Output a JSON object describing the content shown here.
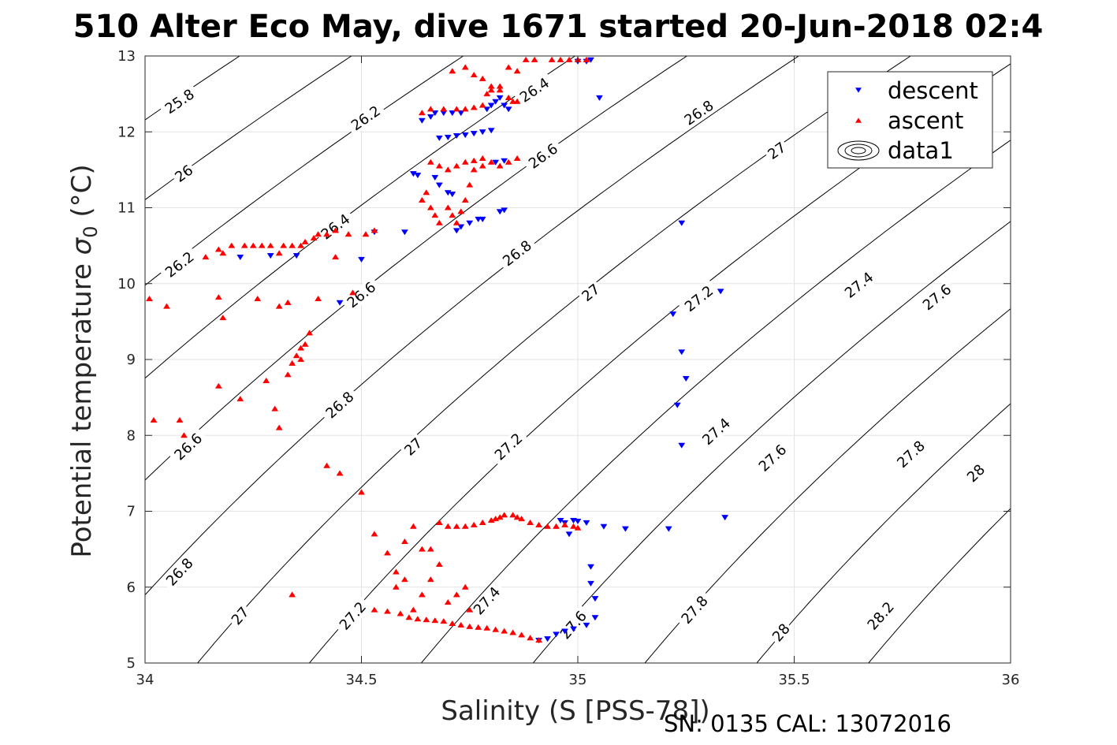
{
  "chart_data": {
    "type": "scatter",
    "title": "510 Alter Eco May, dive 1671 started 20-Jun-2018 02:4",
    "xlabel": "Salinity (S [PSS-78])",
    "ylabel_main": "Potential temperature ",
    "ylabel_symbol": "σ",
    "ylabel_sub": "0",
    "ylabel_unit": " (°C)",
    "footer": "SN: 0135  CAL: 13072016",
    "xlim": [
      34,
      36
    ],
    "ylim": [
      5,
      13
    ],
    "x_ticks": [
      "34",
      "34.5",
      "35",
      "35.5",
      "36"
    ],
    "y_ticks": [
      "5",
      "6",
      "7",
      "8",
      "9",
      "10",
      "11",
      "12",
      "13"
    ],
    "grid": true,
    "legend_position": "top-right",
    "legend": [
      {
        "label": "descent",
        "marker": "triangle-down",
        "color": "#0000ff"
      },
      {
        "label": "ascent",
        "marker": "triangle-up",
        "color": "#ff0000"
      },
      {
        "label": "data1",
        "marker": "contour",
        "color": "#000000"
      }
    ],
    "colors": {
      "descent": "#0000ff",
      "ascent": "#ff0000",
      "contour": "#000000",
      "grid": "#e3e3e3"
    },
    "contour_levels": [
      25.8,
      26.0,
      26.2,
      26.4,
      26.6,
      26.8,
      27.0,
      27.2,
      27.4,
      27.6,
      27.8,
      28.0,
      28.2
    ],
    "contour_labels": [
      {
        "text": "25.8",
        "s": 34.08,
        "t": 12.4
      },
      {
        "text": "26",
        "s": 34.09,
        "t": 11.45
      },
      {
        "text": "26.2",
        "s": 34.51,
        "t": 12.18
      },
      {
        "text": "26.2",
        "s": 34.08,
        "t": 10.25
      },
      {
        "text": "26.4",
        "s": 34.9,
        "t": 12.55
      },
      {
        "text": "26.4",
        "s": 34.44,
        "t": 10.75
      },
      {
        "text": "26.6",
        "s": 34.92,
        "t": 11.68
      },
      {
        "text": "26.6",
        "s": 34.5,
        "t": 9.85
      },
      {
        "text": "26.6",
        "s": 34.1,
        "t": 7.85
      },
      {
        "text": "26.8",
        "s": 35.28,
        "t": 12.25
      },
      {
        "text": "26.8",
        "s": 34.86,
        "t": 10.4
      },
      {
        "text": "26.8",
        "s": 34.45,
        "t": 8.4
      },
      {
        "text": "26.8",
        "s": 34.08,
        "t": 6.2
      },
      {
        "text": "27",
        "s": 35.46,
        "t": 11.75
      },
      {
        "text": "27",
        "s": 35.03,
        "t": 9.88
      },
      {
        "text": "27",
        "s": 34.62,
        "t": 7.85
      },
      {
        "text": "27",
        "s": 34.22,
        "t": 5.62
      },
      {
        "text": "27.2",
        "s": 35.28,
        "t": 9.8
      },
      {
        "text": "27.2",
        "s": 34.84,
        "t": 7.85
      },
      {
        "text": "27.2",
        "s": 34.48,
        "t": 5.62
      },
      {
        "text": "27.4",
        "s": 35.65,
        "t": 9.98
      },
      {
        "text": "27.4",
        "s": 35.32,
        "t": 8.05
      },
      {
        "text": "27.4",
        "s": 34.79,
        "t": 5.82
      },
      {
        "text": "27.6",
        "s": 35.83,
        "t": 9.82
      },
      {
        "text": "27.6",
        "s": 35.45,
        "t": 7.7
      },
      {
        "text": "27.6",
        "s": 34.99,
        "t": 5.5
      },
      {
        "text": "27.8",
        "s": 35.77,
        "t": 7.75
      },
      {
        "text": "27.8",
        "s": 35.27,
        "t": 5.7
      },
      {
        "text": "28",
        "s": 35.92,
        "t": 7.5
      },
      {
        "text": "28",
        "s": 35.47,
        "t": 5.4
      },
      {
        "text": "28.2",
        "s": 35.7,
        "t": 5.62
      }
    ],
    "series": [
      {
        "name": "descent",
        "points": [
          [
            34.22,
            10.35
          ],
          [
            34.29,
            10.37
          ],
          [
            34.35,
            10.37
          ],
          [
            34.45,
            9.75
          ],
          [
            34.5,
            10.32
          ],
          [
            34.53,
            10.68
          ],
          [
            34.6,
            10.68
          ],
          [
            34.62,
            11.45
          ],
          [
            34.63,
            11.43
          ],
          [
            34.67,
            11.4
          ],
          [
            34.68,
            11.3
          ],
          [
            34.7,
            11.2
          ],
          [
            34.71,
            11.18
          ],
          [
            34.72,
            10.7
          ],
          [
            34.73,
            10.75
          ],
          [
            34.75,
            10.8
          ],
          [
            34.77,
            10.85
          ],
          [
            34.78,
            10.85
          ],
          [
            34.82,
            10.95
          ],
          [
            34.83,
            10.97
          ],
          [
            34.64,
            12.15
          ],
          [
            34.66,
            12.2
          ],
          [
            34.67,
            12.25
          ],
          [
            34.69,
            12.25
          ],
          [
            34.71,
            12.25
          ],
          [
            34.73,
            12.25
          ],
          [
            34.68,
            11.92
          ],
          [
            34.7,
            11.93
          ],
          [
            34.72,
            11.95
          ],
          [
            34.74,
            11.96
          ],
          [
            34.76,
            11.98
          ],
          [
            34.78,
            12.0
          ],
          [
            34.8,
            12.02
          ],
          [
            34.81,
            11.6
          ],
          [
            34.83,
            11.62
          ],
          [
            34.79,
            12.3
          ],
          [
            34.8,
            12.35
          ],
          [
            34.81,
            12.4
          ],
          [
            34.82,
            12.45
          ],
          [
            34.83,
            12.35
          ],
          [
            34.84,
            12.3
          ],
          [
            35.0,
            12.93
          ],
          [
            35.02,
            12.93
          ],
          [
            35.03,
            12.95
          ],
          [
            35.05,
            12.45
          ],
          [
            35.24,
            10.8
          ],
          [
            35.22,
            9.6
          ],
          [
            35.24,
            9.1
          ],
          [
            35.25,
            8.75
          ],
          [
            35.23,
            8.4
          ],
          [
            35.24,
            7.87
          ],
          [
            35.33,
            9.9
          ],
          [
            35.34,
            6.92
          ],
          [
            35.21,
            6.77
          ],
          [
            35.11,
            6.77
          ],
          [
            35.06,
            6.8
          ],
          [
            34.96,
            6.88
          ],
          [
            34.97,
            6.85
          ],
          [
            34.98,
            6.7
          ],
          [
            34.99,
            6.88
          ],
          [
            35.0,
            6.87
          ],
          [
            35.02,
            6.85
          ],
          [
            35.03,
            6.27
          ],
          [
            35.03,
            6.05
          ],
          [
            35.04,
            5.85
          ],
          [
            35.04,
            5.6
          ],
          [
            35.02,
            5.5
          ],
          [
            34.99,
            5.45
          ],
          [
            34.97,
            5.42
          ],
          [
            34.95,
            5.38
          ],
          [
            34.93,
            5.32
          ],
          [
            34.91,
            5.3
          ]
        ]
      },
      {
        "name": "ascent",
        "points": [
          [
            34.01,
            9.8
          ],
          [
            34.05,
            9.7
          ],
          [
            34.14,
            10.35
          ],
          [
            34.17,
            10.45
          ],
          [
            34.18,
            10.4
          ],
          [
            34.2,
            10.5
          ],
          [
            34.23,
            10.5
          ],
          [
            34.25,
            10.5
          ],
          [
            34.27,
            10.5
          ],
          [
            34.29,
            10.5
          ],
          [
            34.31,
            10.4
          ],
          [
            34.32,
            10.5
          ],
          [
            34.34,
            10.5
          ],
          [
            34.36,
            10.5
          ],
          [
            34.37,
            10.55
          ],
          [
            34.39,
            10.6
          ],
          [
            34.4,
            10.65
          ],
          [
            34.42,
            10.65
          ],
          [
            34.44,
            10.7
          ],
          [
            34.47,
            10.65
          ],
          [
            34.51,
            10.65
          ],
          [
            34.53,
            10.7
          ],
          [
            34.44,
            10.35
          ],
          [
            34.4,
            9.8
          ],
          [
            34.33,
            9.75
          ],
          [
            34.31,
            9.7
          ],
          [
            34.26,
            9.8
          ],
          [
            34.18,
            9.55
          ],
          [
            34.17,
            9.82
          ],
          [
            34.08,
            8.2
          ],
          [
            34.09,
            8.0
          ],
          [
            34.02,
            8.2
          ],
          [
            34.17,
            8.65
          ],
          [
            34.22,
            8.48
          ],
          [
            34.28,
            8.72
          ],
          [
            34.3,
            8.35
          ],
          [
            34.31,
            8.1
          ],
          [
            34.33,
            8.8
          ],
          [
            34.34,
            8.95
          ],
          [
            34.35,
            9.05
          ],
          [
            34.36,
            9.15
          ],
          [
            34.37,
            9.2
          ],
          [
            34.38,
            9.35
          ],
          [
            34.36,
            9.0
          ],
          [
            34.42,
            7.6
          ],
          [
            34.45,
            7.5
          ],
          [
            34.5,
            7.25
          ],
          [
            34.48,
            9.88
          ],
          [
            34.34,
            5.9
          ],
          [
            34.53,
            6.7
          ],
          [
            34.56,
            6.45
          ],
          [
            34.58,
            6.2
          ],
          [
            34.6,
            6.6
          ],
          [
            34.62,
            6.8
          ],
          [
            34.64,
            6.5
          ],
          [
            34.66,
            6.5
          ],
          [
            34.68,
            6.85
          ],
          [
            34.7,
            6.8
          ],
          [
            34.72,
            6.8
          ],
          [
            34.74,
            6.8
          ],
          [
            34.76,
            6.82
          ],
          [
            34.78,
            6.85
          ],
          [
            34.8,
            6.88
          ],
          [
            34.81,
            6.9
          ],
          [
            34.82,
            6.92
          ],
          [
            34.83,
            6.95
          ],
          [
            34.85,
            6.95
          ],
          [
            34.86,
            6.92
          ],
          [
            34.87,
            6.9
          ],
          [
            34.89,
            6.85
          ],
          [
            34.91,
            6.82
          ],
          [
            34.93,
            6.8
          ],
          [
            34.95,
            6.8
          ],
          [
            34.97,
            6.82
          ],
          [
            34.99,
            6.8
          ],
          [
            35.0,
            6.78
          ],
          [
            34.53,
            5.7
          ],
          [
            34.56,
            5.68
          ],
          [
            34.59,
            5.65
          ],
          [
            34.61,
            5.6
          ],
          [
            34.63,
            5.58
          ],
          [
            34.65,
            5.57
          ],
          [
            34.67,
            5.56
          ],
          [
            34.69,
            5.55
          ],
          [
            34.71,
            5.52
          ],
          [
            34.73,
            5.5
          ],
          [
            34.75,
            5.48
          ],
          [
            34.77,
            5.47
          ],
          [
            34.79,
            5.46
          ],
          [
            34.81,
            5.44
          ],
          [
            34.83,
            5.42
          ],
          [
            34.85,
            5.4
          ],
          [
            34.87,
            5.37
          ],
          [
            34.89,
            5.33
          ],
          [
            34.91,
            5.3
          ],
          [
            34.62,
            5.7
          ],
          [
            34.64,
            5.9
          ],
          [
            34.66,
            6.1
          ],
          [
            34.68,
            6.3
          ],
          [
            34.7,
            5.8
          ],
          [
            34.72,
            5.9
          ],
          [
            34.74,
            6.0
          ],
          [
            34.75,
            5.7
          ],
          [
            34.6,
            6.1
          ],
          [
            34.58,
            6.0
          ],
          [
            34.64,
            11.1
          ],
          [
            34.65,
            11.2
          ],
          [
            34.66,
            11.0
          ],
          [
            34.67,
            10.9
          ],
          [
            34.68,
            10.8
          ],
          [
            34.7,
            11.0
          ],
          [
            34.71,
            10.9
          ],
          [
            34.72,
            10.8
          ],
          [
            34.73,
            10.95
          ],
          [
            34.74,
            11.1
          ],
          [
            34.75,
            11.3
          ],
          [
            34.76,
            11.5
          ],
          [
            34.78,
            11.55
          ],
          [
            34.8,
            11.6
          ],
          [
            34.82,
            11.55
          ],
          [
            34.84,
            11.6
          ],
          [
            34.86,
            11.65
          ],
          [
            34.66,
            11.6
          ],
          [
            34.68,
            11.55
          ],
          [
            34.7,
            11.5
          ],
          [
            34.72,
            11.55
          ],
          [
            34.74,
            11.6
          ],
          [
            34.76,
            11.62
          ],
          [
            34.78,
            11.65
          ],
          [
            34.64,
            12.25
          ],
          [
            34.66,
            12.3
          ],
          [
            34.69,
            12.3
          ],
          [
            34.72,
            12.3
          ],
          [
            34.74,
            12.3
          ],
          [
            34.76,
            12.32
          ],
          [
            34.78,
            12.35
          ],
          [
            34.79,
            12.5
          ],
          [
            34.8,
            12.55
          ],
          [
            34.82,
            12.6
          ],
          [
            34.84,
            12.45
          ],
          [
            34.85,
            12.4
          ],
          [
            34.86,
            12.4
          ],
          [
            34.71,
            12.8
          ],
          [
            34.74,
            12.85
          ],
          [
            34.76,
            12.75
          ],
          [
            34.78,
            12.7
          ],
          [
            34.8,
            12.6
          ],
          [
            34.82,
            12.55
          ],
          [
            34.84,
            12.85
          ],
          [
            34.86,
            12.8
          ],
          [
            34.88,
            12.95
          ],
          [
            34.9,
            12.95
          ],
          [
            34.94,
            12.95
          ],
          [
            34.96,
            12.95
          ],
          [
            34.98,
            12.95
          ],
          [
            35.0,
            12.95
          ],
          [
            35.02,
            12.95
          ]
        ]
      }
    ]
  }
}
